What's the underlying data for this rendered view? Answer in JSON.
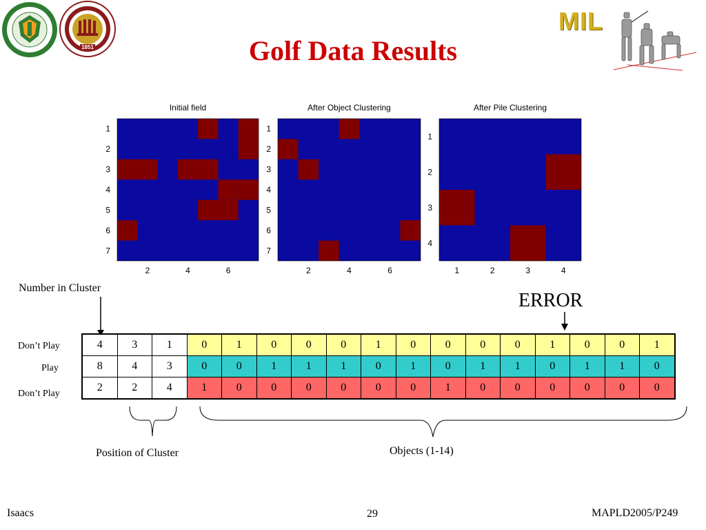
{
  "slide": {
    "title": "Golf Data Results",
    "footer_left": "Isaacs",
    "footer_center": "29",
    "footer_right": "MAPLD2005/P249"
  },
  "logos": {
    "famu": {
      "text_top": "FLORIDA AGRICULTURAL",
      "text_bottom": "MECHANICAL UNIVERSITY",
      "center": [
        "HEAD",
        "HEART",
        "HAND",
        "FIELD"
      ]
    },
    "fsu": {
      "text_top": "FLORIDA STATE UNIVERSITY",
      "year": "1851"
    },
    "mil": {
      "text": "MIL"
    }
  },
  "plots": [
    {
      "title": "Initial field",
      "rows": 7,
      "cols": 7,
      "y_ticks": [
        "1",
        "2",
        "3",
        "4",
        "5",
        "6",
        "7"
      ],
      "x_ticks": [
        {
          "value": 2,
          "label": "2"
        },
        {
          "value": 4,
          "label": "4"
        },
        {
          "value": 6,
          "label": "6"
        }
      ],
      "cells": [
        [
          1,
          5
        ],
        [
          1,
          7
        ],
        [
          2,
          7
        ],
        [
          3,
          1
        ],
        [
          3,
          2
        ],
        [
          3,
          4
        ],
        [
          3,
          5
        ],
        [
          4,
          6
        ],
        [
          4,
          7
        ],
        [
          5,
          5
        ],
        [
          5,
          6
        ],
        [
          6,
          1
        ]
      ]
    },
    {
      "title": "After Object Clustering",
      "rows": 7,
      "cols": 7,
      "y_ticks": [
        "1",
        "2",
        "3",
        "4",
        "5",
        "6",
        "7"
      ],
      "x_ticks": [
        {
          "value": 2,
          "label": "2"
        },
        {
          "value": 4,
          "label": "4"
        },
        {
          "value": 6,
          "label": "6"
        }
      ],
      "cells": [
        [
          1,
          4
        ],
        [
          2,
          1
        ],
        [
          3,
          2
        ],
        [
          6,
          7
        ],
        [
          7,
          3
        ]
      ]
    },
    {
      "title": "After Pile Clustering",
      "rows": 4,
      "cols": 4,
      "y_ticks": [
        "1",
        "2",
        "3",
        "4"
      ],
      "x_ticks": [
        {
          "value": 1,
          "label": "1"
        },
        {
          "value": 2,
          "label": "2"
        },
        {
          "value": 3,
          "label": "3"
        },
        {
          "value": 4,
          "label": "4"
        }
      ],
      "cells": [
        [
          2,
          4
        ],
        [
          3,
          1
        ],
        [
          4,
          3
        ]
      ]
    }
  ],
  "colors": {
    "field": "#0a0aa0",
    "cell": "#800000",
    "title": "#cc0000",
    "row_yellow": "#ffff99",
    "row_teal": "#33cccc",
    "row_pink": "#ff6666"
  },
  "annotations": {
    "number_in_cluster": "Number in Cluster",
    "error": "ERROR",
    "position_of_cluster": "Position of Cluster",
    "objects": "Objects (1-14)"
  },
  "table": {
    "rows": [
      {
        "label": "Don’t Play",
        "cluster": [
          "4",
          "3",
          "1"
        ],
        "objects": [
          "0",
          "1",
          "0",
          "0",
          "0",
          "1",
          "0",
          "0",
          "0",
          "0",
          "1",
          "0",
          "0",
          "1"
        ],
        "color": "#ffff99"
      },
      {
        "label": "Play",
        "cluster": [
          "8",
          "4",
          "3"
        ],
        "objects": [
          "0",
          "0",
          "1",
          "1",
          "1",
          "0",
          "1",
          "0",
          "1",
          "1",
          "0",
          "1",
          "1",
          "0"
        ],
        "color": "#33cccc"
      },
      {
        "label": "Don’t Play",
        "cluster": [
          "2",
          "2",
          "4"
        ],
        "objects": [
          "1",
          "0",
          "0",
          "0",
          "0",
          "0",
          "0",
          "1",
          "0",
          "0",
          "0",
          "0",
          "0",
          "0"
        ],
        "color": "#ff6666"
      }
    ]
  }
}
